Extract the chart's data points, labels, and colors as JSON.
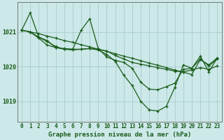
{
  "title": "Graphe pression niveau de la mer (hPa)",
  "ylabel_ticks": [
    1019,
    1020,
    1021
  ],
  "xlim": [
    -0.5,
    23.5
  ],
  "ylim": [
    1018.4,
    1021.85
  ],
  "bg_color": "#cce8e8",
  "grid_color": "#aacccc",
  "line_color": "#1a5c1a",
  "series": [
    {
      "x": [
        0,
        1,
        2,
        3,
        4,
        5,
        6,
        7,
        8,
        9,
        10,
        11,
        12,
        13,
        14,
        15,
        16,
        17,
        18,
        19,
        20,
        21,
        22,
        23
      ],
      "y": [
        1021.05,
        1021.0,
        1020.95,
        1020.88,
        1020.82,
        1020.75,
        1020.7,
        1020.63,
        1020.57,
        1020.5,
        1020.44,
        1020.37,
        1020.3,
        1020.24,
        1020.17,
        1020.1,
        1020.04,
        1019.97,
        1019.9,
        1019.84,
        1019.77,
        1020.2,
        1020.05,
        1020.25
      ]
    },
    {
      "x": [
        0,
        1,
        2,
        3,
        4,
        5,
        6,
        7,
        8,
        9,
        10,
        11,
        12,
        13,
        14,
        15,
        16,
        17,
        18,
        19,
        20,
        21,
        22,
        23
      ],
      "y": [
        1021.05,
        1021.55,
        1020.85,
        1020.75,
        1020.55,
        1020.5,
        1020.48,
        1020.5,
        1020.52,
        1020.48,
        1020.35,
        1020.15,
        1019.75,
        1019.45,
        1019.0,
        1018.75,
        1018.72,
        1018.85,
        1019.4,
        1020.05,
        1019.95,
        1020.3,
        1019.85,
        1020.25
      ]
    },
    {
      "x": [
        0,
        1,
        2,
        3,
        4,
        5,
        6,
        7,
        8,
        9,
        10,
        11,
        12,
        13,
        14,
        15,
        16,
        17,
        18,
        19,
        20,
        21,
        22,
        23
      ],
      "y": [
        1021.05,
        1021.0,
        1020.85,
        1020.72,
        1020.58,
        1020.5,
        1020.5,
        1021.05,
        1021.38,
        1020.52,
        1020.28,
        1020.18,
        1020.12,
        1019.95,
        1019.55,
        1019.35,
        1019.33,
        1019.42,
        1019.52,
        1019.92,
        1019.95,
        1020.22,
        1020.02,
        1020.22
      ]
    },
    {
      "x": [
        0,
        1,
        2,
        3,
        4,
        5,
        6,
        7,
        8,
        9,
        10,
        11,
        12,
        13,
        14,
        15,
        16,
        17,
        18,
        19,
        20,
        21,
        22,
        23
      ],
      "y": [
        1021.05,
        1021.0,
        1020.82,
        1020.62,
        1020.55,
        1020.52,
        1020.5,
        1020.5,
        1020.52,
        1020.5,
        1020.45,
        1020.32,
        1020.22,
        1020.12,
        1020.07,
        1020.02,
        1019.97,
        1019.92,
        1019.87,
        1019.85,
        1019.9,
        1019.97,
        1019.92,
        1020.02
      ]
    }
  ],
  "marker": "+",
  "markersize": 3.5,
  "linewidth": 0.9,
  "tick_fontsize": 5.5,
  "label_fontsize": 6.5
}
